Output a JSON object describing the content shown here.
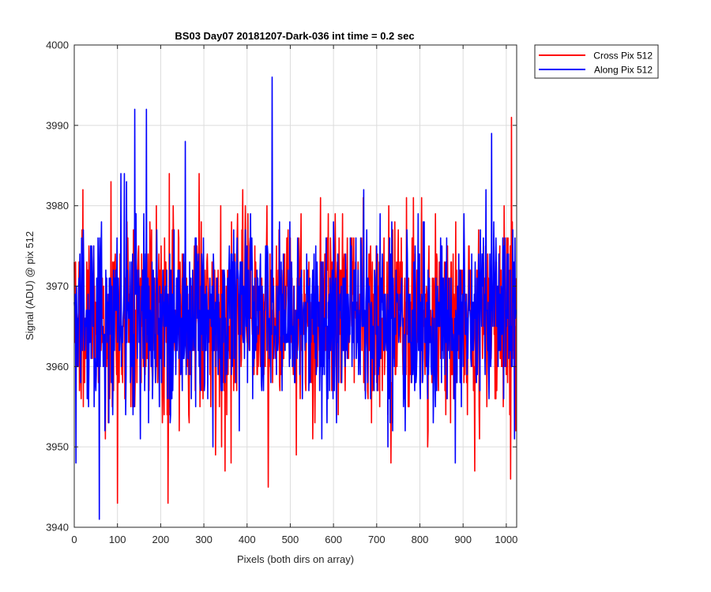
{
  "chart_data": {
    "type": "line",
    "title": "BS03 Day07 20181207-Dark-036 int time = 0.2 sec",
    "xlabel": "Pixels (both dirs on array)",
    "ylabel": "Signal (ADU) @ pix 512",
    "xlim": [
      0,
      1024
    ],
    "ylim": [
      3940,
      4000
    ],
    "xticks": [
      0,
      100,
      200,
      300,
      400,
      500,
      600,
      700,
      800,
      900,
      1000
    ],
    "yticks": [
      3940,
      3950,
      3960,
      3970,
      3980,
      3990,
      4000
    ],
    "grid": true,
    "legend_position": "outside-top-right",
    "series": [
      {
        "name": "Cross Pix 512",
        "color": "#ff0000",
        "summary": {
          "points": 1024,
          "approx_mean": 3966,
          "approx_min": 3943,
          "approx_max": 3991
        }
      },
      {
        "name": "Along Pix 512",
        "color": "#0000ff",
        "summary": {
          "points": 1024,
          "approx_mean": 3966,
          "approx_min": 3941,
          "approx_max": 3996
        }
      }
    ]
  }
}
